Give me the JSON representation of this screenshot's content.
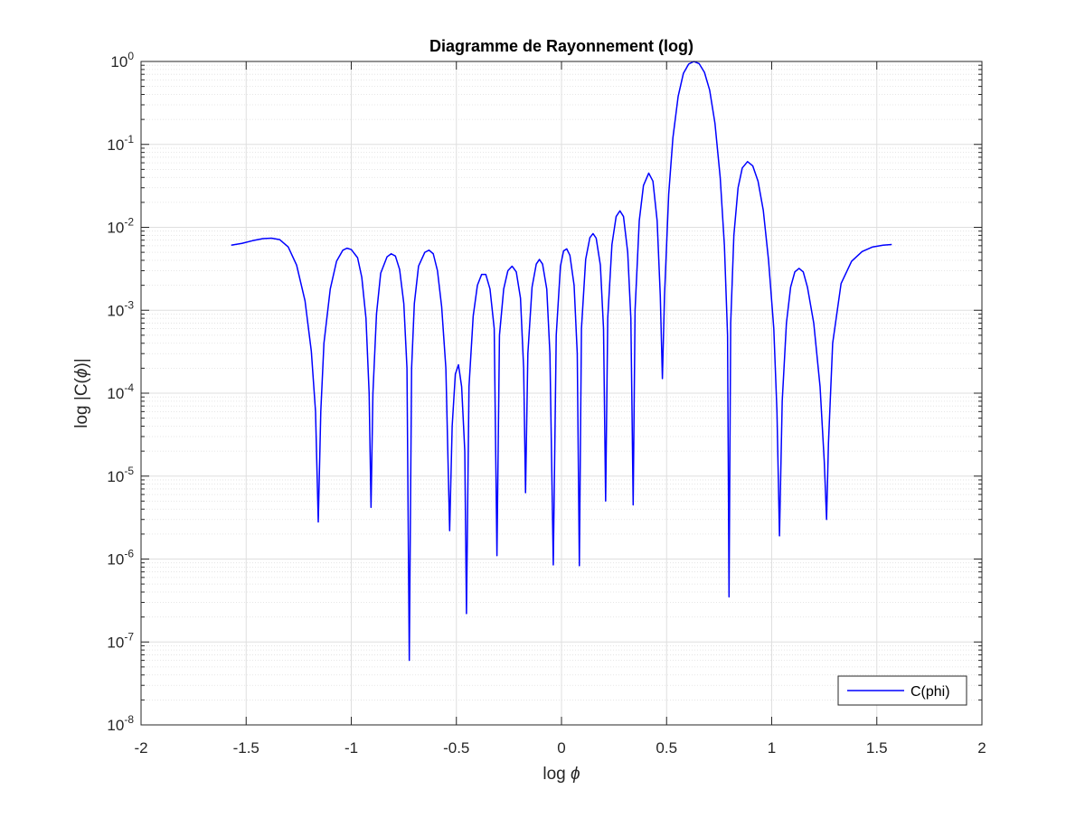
{
  "chart_data": {
    "type": "line",
    "title": "Diagramme de Rayonnement (log)",
    "xlabel_text": "log ",
    "xlabel_symbol": "ϕ",
    "ylabel_prefix": "log |C(",
    "ylabel_symbol": "ϕ",
    "ylabel_suffix": ")|",
    "xscale": "linear",
    "yscale": "log",
    "xlim": [
      -2,
      2
    ],
    "ylim": [
      1e-08,
      1
    ],
    "xticks": [
      -2,
      -1.5,
      -1,
      -0.5,
      0,
      0.5,
      1,
      1.5,
      2
    ],
    "xtick_labels": [
      "-2",
      "-1.5",
      "-1",
      "-0.5",
      "0",
      "0.5",
      "1",
      "1.5",
      "2"
    ],
    "ytick_exponents": [
      -8,
      -7,
      -6,
      -5,
      -4,
      -3,
      -2,
      -1,
      0
    ],
    "ytick_base": "10",
    "grid": true,
    "minor_grid": true,
    "legend_position": "bottom-right",
    "series": [
      {
        "name": "C(phi)",
        "color": "#0000ff",
        "points": [
          [
            -1.571,
            0.0061
          ],
          [
            -1.52,
            0.0064
          ],
          [
            -1.47,
            0.0069
          ],
          [
            -1.42,
            0.0073
          ],
          [
            -1.38,
            0.0074
          ],
          [
            -1.34,
            0.0071
          ],
          [
            -1.3,
            0.0058
          ],
          [
            -1.26,
            0.0035
          ],
          [
            -1.22,
            0.0013
          ],
          [
            -1.19,
            0.00032
          ],
          [
            -1.17,
            6e-05
          ],
          [
            -1.157,
            2.8e-06
          ],
          [
            -1.145,
            6e-05
          ],
          [
            -1.13,
            0.0004
          ],
          [
            -1.1,
            0.0018
          ],
          [
            -1.07,
            0.0039
          ],
          [
            -1.04,
            0.0053
          ],
          [
            -1.02,
            0.0056
          ],
          [
            -1.0,
            0.0054
          ],
          [
            -0.97,
            0.0043
          ],
          [
            -0.95,
            0.0025
          ],
          [
            -0.93,
            0.0008
          ],
          [
            -0.915,
            0.0001
          ],
          [
            -0.906,
            4.2e-06
          ],
          [
            -0.897,
            0.0001
          ],
          [
            -0.88,
            0.0009
          ],
          [
            -0.86,
            0.0028
          ],
          [
            -0.83,
            0.0044
          ],
          [
            -0.81,
            0.0048
          ],
          [
            -0.79,
            0.0045
          ],
          [
            -0.77,
            0.0031
          ],
          [
            -0.75,
            0.0012
          ],
          [
            -0.735,
            0.0002
          ],
          [
            -0.724,
            6e-08
          ],
          [
            -0.713,
            0.0002
          ],
          [
            -0.7,
            0.0012
          ],
          [
            -0.68,
            0.0034
          ],
          [
            -0.65,
            0.005
          ],
          [
            -0.63,
            0.0053
          ],
          [
            -0.61,
            0.0048
          ],
          [
            -0.59,
            0.003
          ],
          [
            -0.57,
            0.0011
          ],
          [
            -0.55,
            0.0002
          ],
          [
            -0.532,
            2.2e-06
          ],
          [
            -0.52,
            4e-05
          ],
          [
            -0.505,
            0.00017
          ],
          [
            -0.49,
            0.00022
          ],
          [
            -0.475,
            0.00012
          ],
          [
            -0.46,
            2e-05
          ],
          [
            -0.452,
            2.2e-07
          ],
          [
            -0.44,
            0.00012
          ],
          [
            -0.42,
            0.00085
          ],
          [
            -0.4,
            0.002
          ],
          [
            -0.38,
            0.0027
          ],
          [
            -0.36,
            0.0027
          ],
          [
            -0.34,
            0.0018
          ],
          [
            -0.32,
            0.0006
          ],
          [
            -0.307,
            1.1e-06
          ],
          [
            -0.295,
            0.0005
          ],
          [
            -0.275,
            0.0018
          ],
          [
            -0.255,
            0.003
          ],
          [
            -0.235,
            0.0034
          ],
          [
            -0.215,
            0.0029
          ],
          [
            -0.195,
            0.0014
          ],
          [
            -0.18,
            0.0002
          ],
          [
            -0.171,
            6.3e-06
          ],
          [
            -0.16,
            0.0003
          ],
          [
            -0.14,
            0.0019
          ],
          [
            -0.12,
            0.0036
          ],
          [
            -0.105,
            0.0041
          ],
          [
            -0.09,
            0.0036
          ],
          [
            -0.07,
            0.0018
          ],
          [
            -0.055,
            0.0003
          ],
          [
            -0.039,
            8.5e-07
          ],
          [
            -0.025,
            0.0005
          ],
          [
            -0.005,
            0.0034
          ],
          [
            0.01,
            0.0052
          ],
          [
            0.025,
            0.0055
          ],
          [
            0.04,
            0.0046
          ],
          [
            0.06,
            0.002
          ],
          [
            0.075,
            0.0003
          ],
          [
            0.085,
            8.3e-07
          ],
          [
            0.095,
            0.0006
          ],
          [
            0.115,
            0.0041
          ],
          [
            0.135,
            0.0075
          ],
          [
            0.15,
            0.0084
          ],
          [
            0.165,
            0.0074
          ],
          [
            0.185,
            0.0035
          ],
          [
            0.2,
            0.0006
          ],
          [
            0.21,
            5e-06
          ],
          [
            0.22,
            0.0008
          ],
          [
            0.24,
            0.0062
          ],
          [
            0.26,
            0.0135
          ],
          [
            0.278,
            0.0158
          ],
          [
            0.295,
            0.0135
          ],
          [
            0.315,
            0.005
          ],
          [
            0.33,
            0.0008
          ],
          [
            0.341,
            4.5e-06
          ],
          [
            0.35,
            0.001
          ],
          [
            0.37,
            0.012
          ],
          [
            0.39,
            0.032
          ],
          [
            0.415,
            0.045
          ],
          [
            0.435,
            0.036
          ],
          [
            0.455,
            0.012
          ],
          [
            0.47,
            0.0015
          ],
          [
            0.48,
            0.00015
          ],
          [
            0.49,
            0.0015
          ],
          [
            0.51,
            0.025
          ],
          [
            0.53,
            0.12
          ],
          [
            0.555,
            0.38
          ],
          [
            0.58,
            0.72
          ],
          [
            0.605,
            0.93
          ],
          [
            0.63,
            1.0
          ],
          [
            0.655,
            0.94
          ],
          [
            0.68,
            0.74
          ],
          [
            0.705,
            0.45
          ],
          [
            0.73,
            0.18
          ],
          [
            0.755,
            0.04
          ],
          [
            0.775,
            0.006
          ],
          [
            0.79,
            0.0005
          ],
          [
            0.797,
            3.5e-07
          ],
          [
            0.805,
            0.0007
          ],
          [
            0.82,
            0.008
          ],
          [
            0.84,
            0.03
          ],
          [
            0.86,
            0.052
          ],
          [
            0.885,
            0.062
          ],
          [
            0.91,
            0.055
          ],
          [
            0.935,
            0.036
          ],
          [
            0.96,
            0.016
          ],
          [
            0.985,
            0.004
          ],
          [
            1.01,
            0.0006
          ],
          [
            1.025,
            6e-05
          ],
          [
            1.037,
            1.9e-06
          ],
          [
            1.05,
            8e-05
          ],
          [
            1.07,
            0.0007
          ],
          [
            1.09,
            0.0019
          ],
          [
            1.11,
            0.0029
          ],
          [
            1.13,
            0.0032
          ],
          [
            1.15,
            0.0029
          ],
          [
            1.17,
            0.0019
          ],
          [
            1.2,
            0.0007
          ],
          [
            1.23,
            0.00012
          ],
          [
            1.25,
            1.5e-05
          ],
          [
            1.261,
            3e-06
          ],
          [
            1.27,
            2.5e-05
          ],
          [
            1.29,
            0.0004
          ],
          [
            1.33,
            0.0021
          ],
          [
            1.38,
            0.0039
          ],
          [
            1.43,
            0.0051
          ],
          [
            1.48,
            0.0058
          ],
          [
            1.53,
            0.0061
          ],
          [
            1.571,
            0.0062
          ]
        ]
      }
    ]
  },
  "colors": {
    "axes": "#262626",
    "grid": "#dfdfdf",
    "line": "#0000ff"
  }
}
